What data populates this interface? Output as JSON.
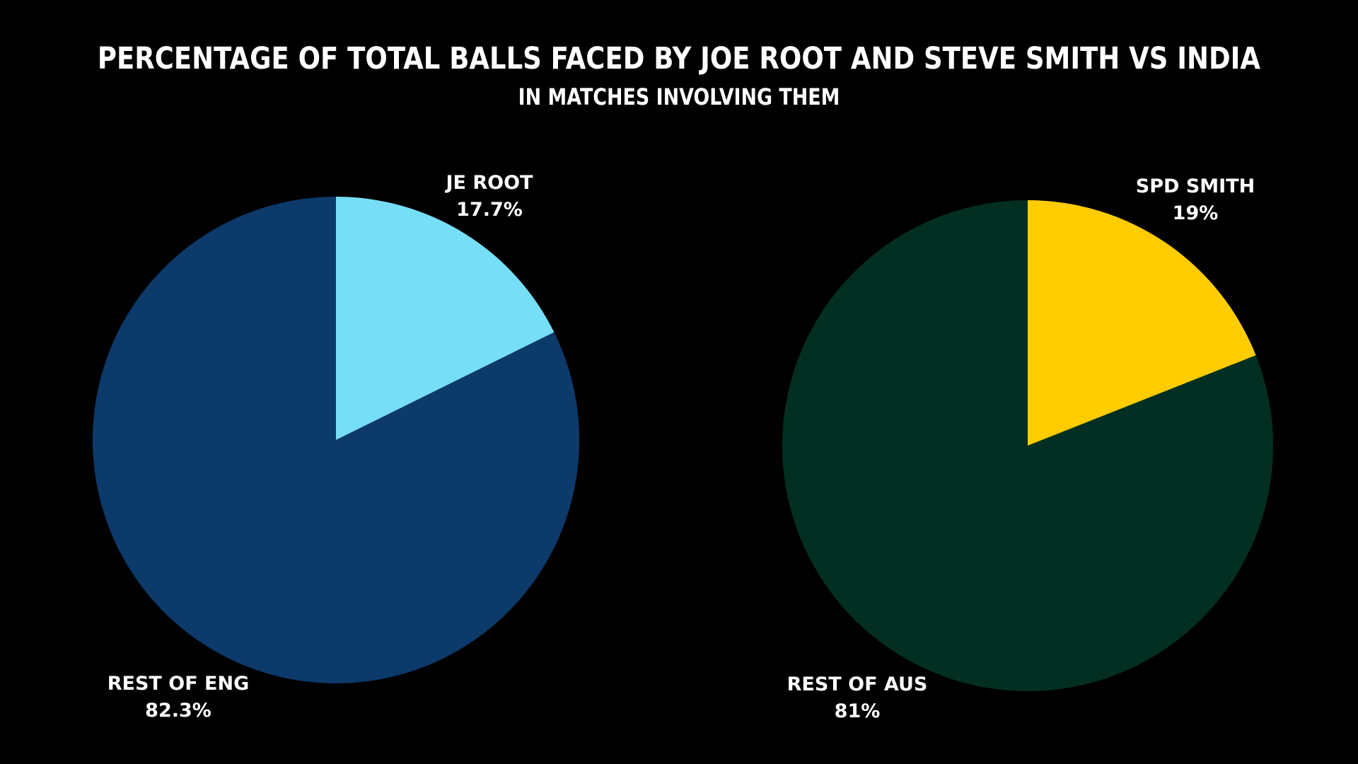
{
  "title": "PERCENTAGE OF TOTAL BALLS FACED BY JOE ROOT AND STEVE SMITH VS INDIA",
  "subtitle": "IN MATCHES INVOLVING THEM",
  "chart_data": [
    {
      "type": "pie",
      "slices": [
        {
          "label": "JE ROOT",
          "value": 17.7,
          "value_label": "17.7%",
          "color": "#76DEF7"
        },
        {
          "label": "REST OF ENG",
          "value": 82.3,
          "value_label": "82.3%",
          "color": "#0C3A6A"
        }
      ]
    },
    {
      "type": "pie",
      "slices": [
        {
          "label": "SPD SMITH",
          "value": 19,
          "value_label": "19%",
          "color": "#FFCC00"
        },
        {
          "label": "REST OF AUS",
          "value": 81,
          "value_label": "81%",
          "color": "#022F21"
        }
      ]
    }
  ]
}
